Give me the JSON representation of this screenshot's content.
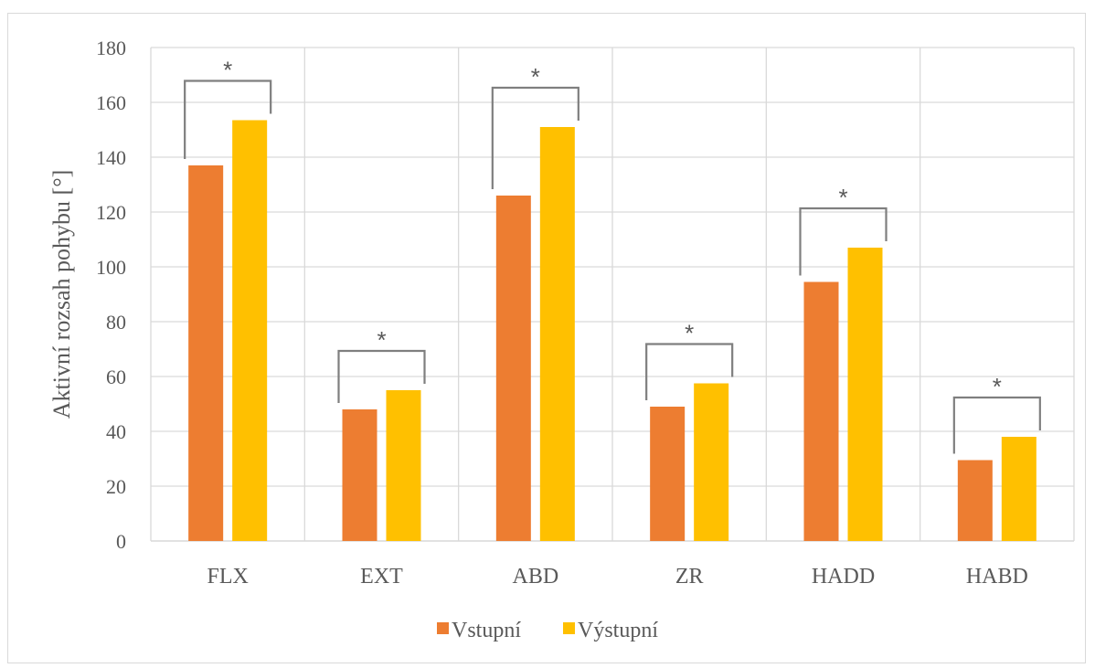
{
  "chart_data": {
    "type": "bar",
    "title": "",
    "xlabel": "",
    "ylabel": "Aktivní rozsah pohybu [°]",
    "ylim": [
      0,
      180
    ],
    "yticks": [
      0,
      20,
      40,
      60,
      80,
      100,
      120,
      140,
      160,
      180
    ],
    "categories": [
      "FLX",
      "EXT",
      "ABD",
      "ZR",
      "HADD",
      "HABD"
    ],
    "series": [
      {
        "name": "Vstupní",
        "color": "#ED7D31",
        "values": [
          137,
          48,
          126,
          49,
          94.5,
          29.5
        ]
      },
      {
        "name": "Výstupní",
        "color": "#FFC000",
        "values": [
          153.5,
          55,
          151,
          57.5,
          107,
          38
        ]
      }
    ],
    "significance_marker": "*",
    "significant": [
      true,
      true,
      true,
      true,
      true,
      true
    ],
    "grid": true,
    "legend_position": "bottom"
  }
}
